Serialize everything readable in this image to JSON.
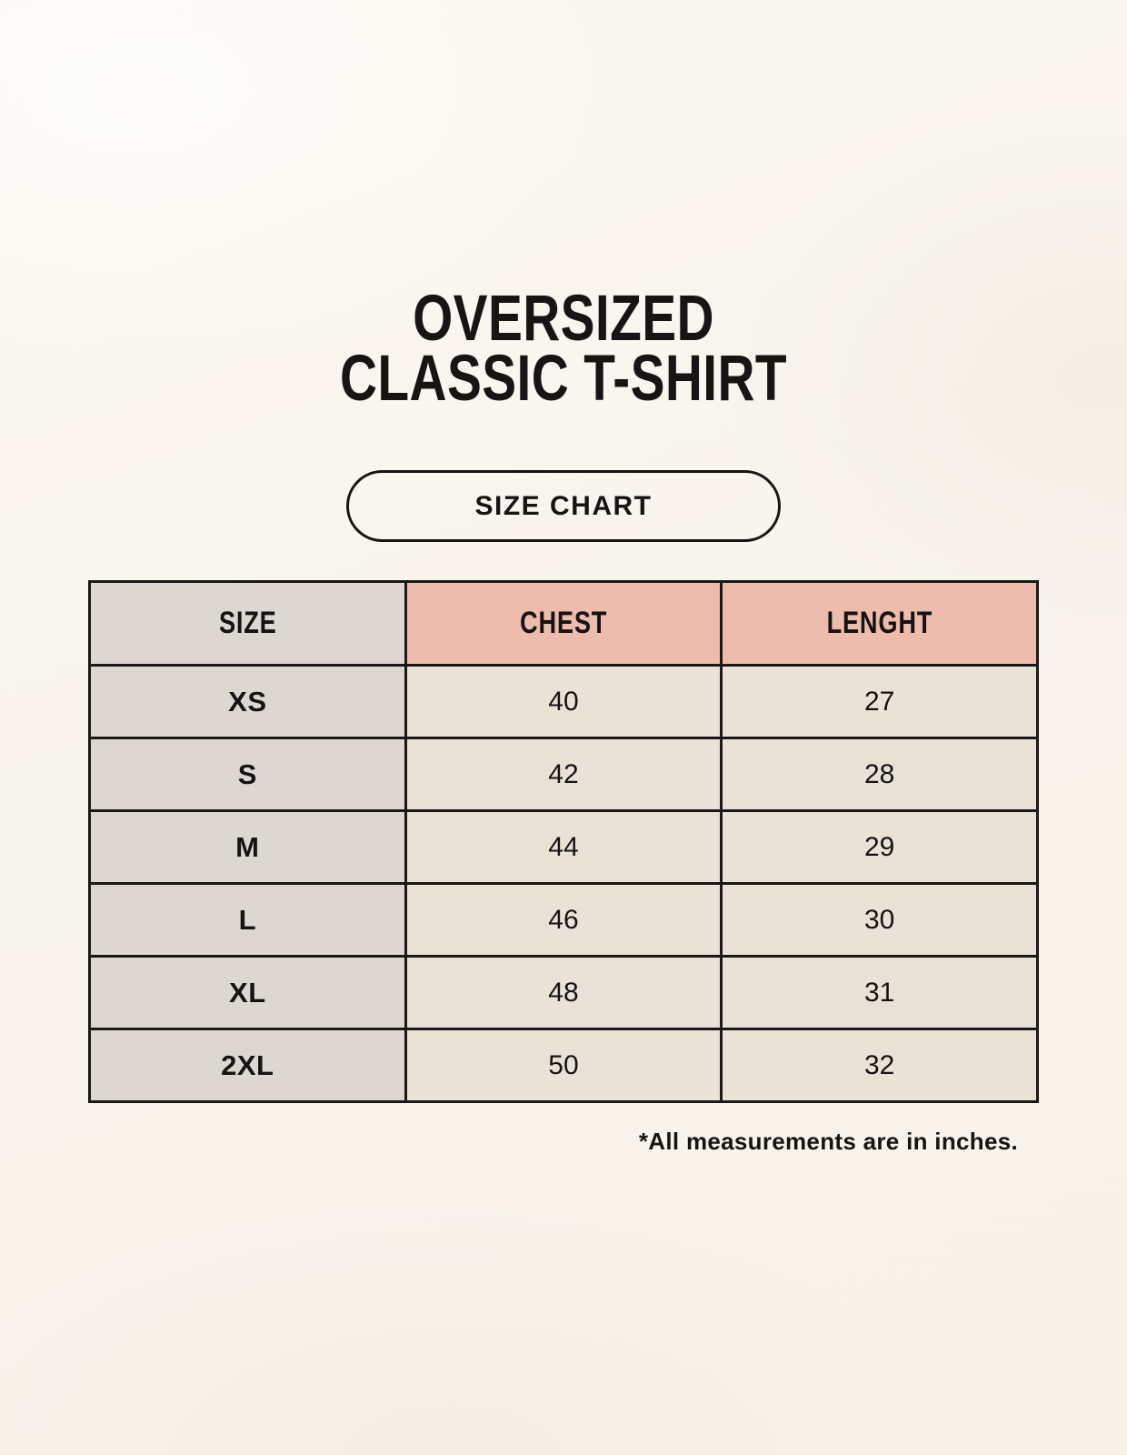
{
  "page": {
    "title_line1": "OVERSIZED",
    "title_line2": "CLASSIC T-SHIRT",
    "badge_label": "SIZE CHART",
    "footnote": "*All measurements are in inches."
  },
  "chart_data": {
    "type": "table",
    "title": "OVERSIZED CLASSIC T-SHIRT SIZE CHART",
    "columns": [
      "SIZE",
      "CHEST",
      "LENGHT"
    ],
    "rows": [
      [
        "XS",
        40,
        27
      ],
      [
        "S",
        42,
        28
      ],
      [
        "M",
        44,
        29
      ],
      [
        "L",
        46,
        30
      ],
      [
        "XL",
        48,
        31
      ],
      [
        "2XL",
        50,
        32
      ]
    ],
    "units": "inches"
  },
  "colors": {
    "background": "#f8f4ed",
    "header_accent": "#eebcac",
    "size_column": "#ddd7d1",
    "value_cell": "#e9e2d7",
    "border": "#1b1917",
    "text": "#161514"
  }
}
